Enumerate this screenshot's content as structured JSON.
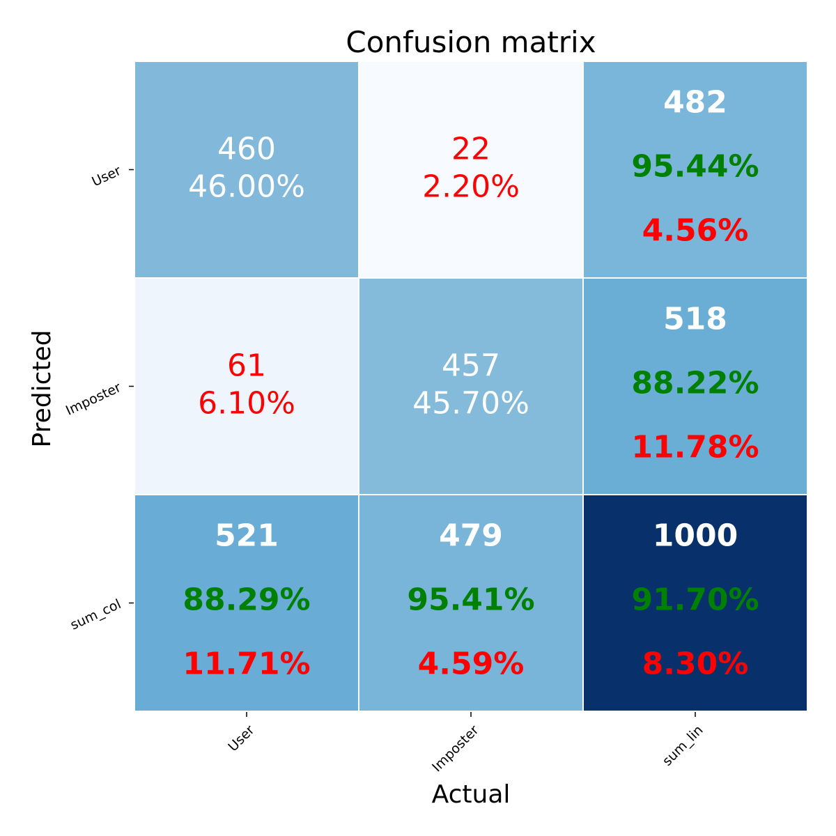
{
  "chart_data": {
    "type": "heatmap",
    "title": "Confusion matrix",
    "xlabel": "Actual",
    "ylabel": "Predicted",
    "x_categories": [
      "User",
      "Imposter",
      "sum_lin"
    ],
    "y_categories": [
      "User",
      "Imposter",
      "sum_col"
    ],
    "colormap": "Blues",
    "colors": {
      "text_light": "#ffffff",
      "text_good": "#008000",
      "text_bad": "#ff0000",
      "cell_border": "#ffffff"
    },
    "cells": [
      [
        {
          "kind": "matrix",
          "count": "460",
          "percent": "46.00%",
          "fill": "#82b9db",
          "text_color": "#ffffff"
        },
        {
          "kind": "matrix",
          "count": "22",
          "percent": "2.20%",
          "fill": "#f7fbff",
          "text_color": "#ff0000"
        },
        {
          "kind": "summary",
          "count": "482",
          "correct": "95.44%",
          "error": "4.56%",
          "fill": "#7ab6d9"
        }
      ],
      [
        {
          "kind": "matrix",
          "count": "61",
          "percent": "6.10%",
          "fill": "#eef5fc",
          "text_color": "#ff0000"
        },
        {
          "kind": "matrix",
          "count": "457",
          "percent": "45.70%",
          "fill": "#84bbdb",
          "text_color": "#ffffff"
        },
        {
          "kind": "summary",
          "count": "518",
          "correct": "88.22%",
          "error": "11.78%",
          "fill": "#6aadd5"
        }
      ],
      [
        {
          "kind": "summary",
          "count": "521",
          "correct": "88.29%",
          "error": "11.71%",
          "fill": "#69acd5"
        },
        {
          "kind": "summary",
          "count": "479",
          "correct": "95.41%",
          "error": "4.59%",
          "fill": "#79b5d9"
        },
        {
          "kind": "summary",
          "count": "1000",
          "correct": "91.70%",
          "error": "8.30%",
          "fill": "#08306b"
        }
      ]
    ]
  }
}
